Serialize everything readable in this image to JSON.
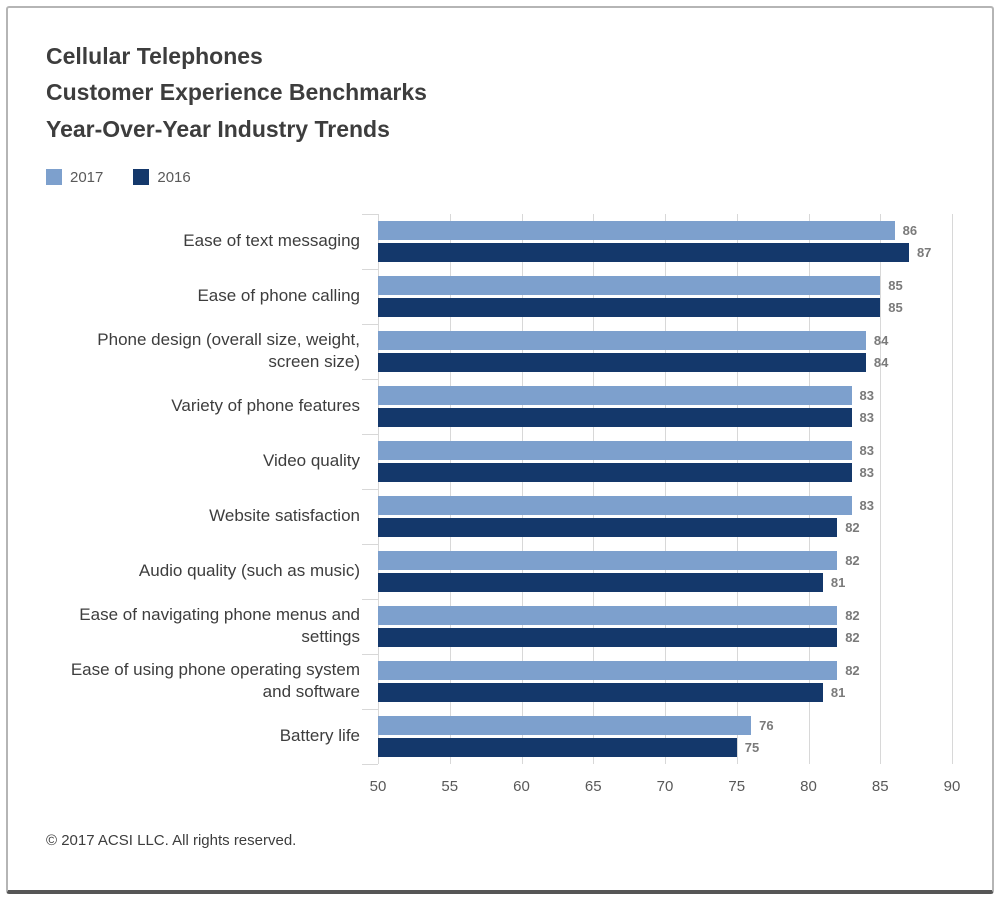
{
  "title": {
    "line1": "Cellular Telephones",
    "line2": "Customer Experience Benchmarks",
    "line3": "Year-Over-Year Industry Trends"
  },
  "legend": [
    {
      "label": "2017",
      "color": "#7da0cd"
    },
    {
      "label": "2016",
      "color": "#14386b"
    }
  ],
  "footer": "© 2017 ACSI LLC. All rights reserved.",
  "chart_data": {
    "type": "bar",
    "orientation": "horizontal",
    "title": "Cellular Telephones Customer Experience Benchmarks Year-Over-Year Industry Trends",
    "categories": [
      "Ease of text messaging",
      "Ease of phone calling",
      "Phone design (overall size, weight, screen size)",
      "Variety of phone features",
      "Video quality",
      "Website satisfaction",
      "Audio quality (such as music)",
      "Ease of navigating phone menus and settings",
      "Ease of using phone operating system and software",
      "Battery life"
    ],
    "series": [
      {
        "name": "2017",
        "color": "#7da0cd",
        "values": [
          86,
          85,
          84,
          83,
          83,
          83,
          82,
          82,
          82,
          76
        ]
      },
      {
        "name": "2016",
        "color": "#14386b",
        "values": [
          87,
          85,
          84,
          83,
          83,
          82,
          81,
          82,
          81,
          75
        ]
      }
    ],
    "xlim": [
      50,
      90
    ],
    "xticks": [
      50,
      55,
      60,
      65,
      70,
      75,
      80,
      85,
      90
    ],
    "grid": true,
    "value_labels": true,
    "legend_position": "top-left"
  }
}
